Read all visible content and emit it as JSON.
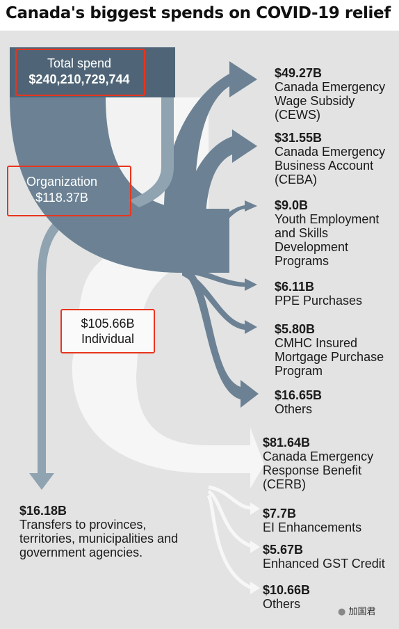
{
  "title": "Canada's biggest spends on COVID-19 relief",
  "total": {
    "label": "Total spend",
    "value": "$240,210,729,744"
  },
  "organization": {
    "label": "Organization",
    "value": "$118.37B"
  },
  "individual": {
    "value": "$105.66B",
    "label": "Individual"
  },
  "transfers": {
    "value": "$16.18B",
    "name": "Transfers to provinces, territories, municipalities and government agencies."
  },
  "org_items": [
    {
      "value": "$49.27B",
      "name": "Canada Emergency Wage Subsidy (CEWS)"
    },
    {
      "value": "$31.55B",
      "name": "Canada Emergency Business Account (CEBA)"
    },
    {
      "value": "$9.0B",
      "name": "Youth Employment and Skills Development Programs"
    },
    {
      "value": "$6.11B",
      "name": "PPE Purchases"
    },
    {
      "value": "$5.80B",
      "name": "CMHC Insured Mortgage Purchase Program"
    },
    {
      "value": "$16.65B",
      "name": "Others"
    }
  ],
  "ind_items": [
    {
      "value": "$81.64B",
      "name": "Canada Emergency Response Benefit (CERB)"
    },
    {
      "value": "$7.7B",
      "name": "EI Enhancements"
    },
    {
      "value": "$5.67B",
      "name": "Enhanced GST Credit"
    },
    {
      "value": "$10.66B",
      "name": "Others"
    }
  ],
  "watermark": "加国君",
  "colors": {
    "org": "#6c8294",
    "org_dark": "#4f6577",
    "transfer": "#8fa3b1",
    "individual": "#f7f7f7",
    "highlight": "#e8351d"
  }
}
